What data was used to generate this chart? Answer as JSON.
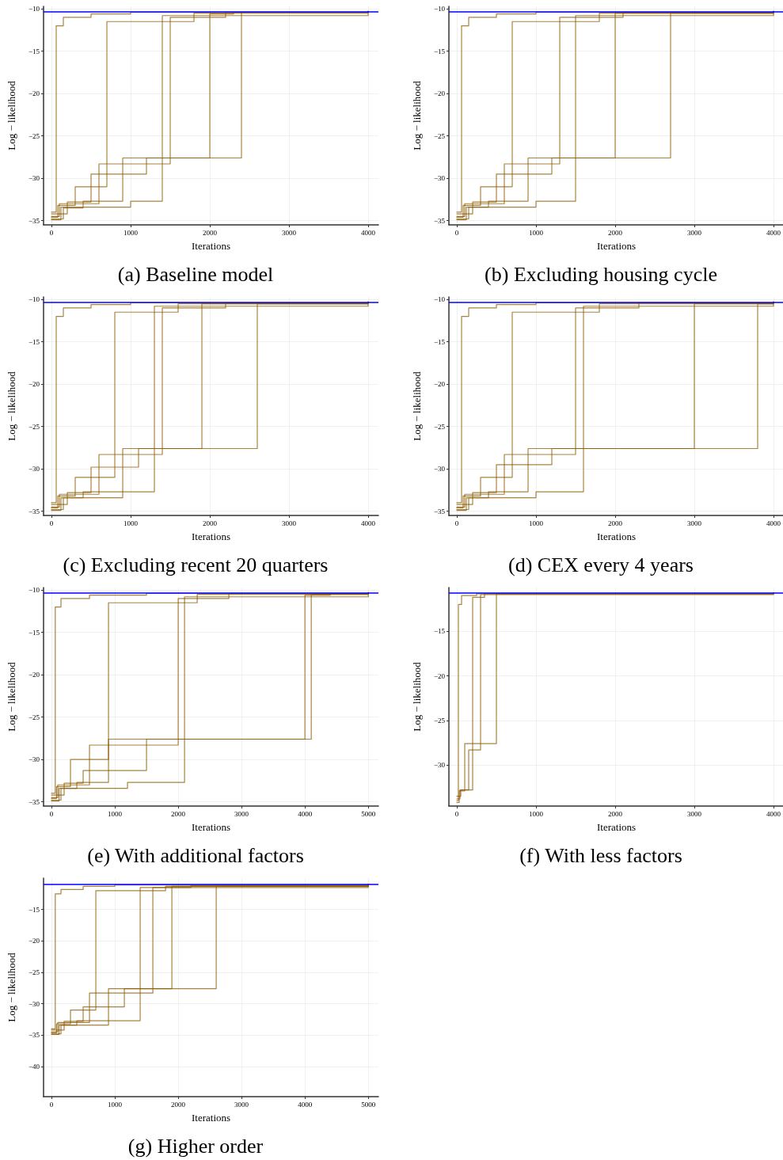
{
  "chart_data": [
    {
      "type": "step",
      "title": "(a) Baseline model",
      "xlabel": "Iterations",
      "ylabel": "Log − likelihood",
      "xlim": [
        -100,
        4130
      ],
      "ylim": [
        -35.5,
        -9.7
      ],
      "xticks": [
        0,
        1000,
        2000,
        3000,
        4000
      ],
      "yticks": [
        -35,
        -30,
        -25,
        -20,
        -15,
        -10
      ],
      "grid": true,
      "marker": "none",
      "ref_lines": [
        {
          "axis": "y",
          "value": -10.3,
          "color": "#0000ff"
        }
      ],
      "series": [
        {
          "color": "#8b5a00",
          "x": [
            0,
            150,
            400,
            900,
            2000,
            2300,
            4000
          ],
          "values": [
            -34.8,
            -33.5,
            -32.7,
            -27.6,
            -10.6,
            -10.4,
            -10.3
          ]
        },
        {
          "color": "#8b5a00",
          "x": [
            0,
            100,
            600,
            1500,
            2200,
            4000
          ],
          "values": [
            -34.5,
            -33,
            -28.3,
            -11,
            -10.4,
            -10.3
          ]
        },
        {
          "color": "#8b5a00",
          "x": [
            0,
            200,
            500,
            1200,
            2400,
            4000
          ],
          "values": [
            -34.2,
            -32.8,
            -29.5,
            -27.6,
            -10.4,
            -10.3
          ]
        },
        {
          "color": "#8b5a00",
          "x": [
            0,
            80,
            300,
            700,
            1800,
            4000
          ],
          "values": [
            -34.6,
            -33.2,
            -31,
            -11.5,
            -10.5,
            -10.3
          ]
        },
        {
          "color": "#8b5a00",
          "x": [
            0,
            120,
            1000,
            1400,
            4000
          ],
          "values": [
            -34.9,
            -33.4,
            -32.7,
            -10.8,
            -10.3
          ]
        },
        {
          "color": "#8b5a00",
          "x": [
            0,
            60,
            150,
            500,
            1000,
            4000
          ],
          "values": [
            -34,
            -12,
            -11,
            -10.6,
            -10.4,
            -10.3
          ]
        }
      ]
    },
    {
      "type": "step",
      "title": "(b) Excluding housing cycle",
      "xlabel": "Iterations",
      "ylabel": "Log − likelihood",
      "xlim": [
        -100,
        4130
      ],
      "ylim": [
        -35.5,
        -9.7
      ],
      "xticks": [
        0,
        1000,
        2000,
        3000,
        4000
      ],
      "yticks": [
        -35,
        -30,
        -25,
        -20,
        -15,
        -10
      ],
      "grid": true,
      "marker": "none",
      "ref_lines": [
        {
          "axis": "y",
          "value": -10.3,
          "color": "#0000ff"
        }
      ],
      "series": [
        {
          "color": "#8b5a00",
          "x": [
            0,
            150,
            400,
            900,
            2700,
            4000
          ],
          "values": [
            -34.8,
            -33.4,
            -32.7,
            -27.6,
            -10.5,
            -10.3
          ]
        },
        {
          "color": "#8b5a00",
          "x": [
            0,
            100,
            600,
            1300,
            2100,
            4000
          ],
          "values": [
            -34.5,
            -33,
            -28.3,
            -11,
            -10.4,
            -10.3
          ]
        },
        {
          "color": "#8b5a00",
          "x": [
            0,
            200,
            500,
            1200,
            2000,
            4000
          ],
          "values": [
            -34.2,
            -32.8,
            -29.5,
            -27.6,
            -10.5,
            -10.3
          ]
        },
        {
          "color": "#8b5a00",
          "x": [
            0,
            80,
            300,
            700,
            1800,
            4000
          ],
          "values": [
            -34.6,
            -33.2,
            -31,
            -11.5,
            -10.5,
            -10.3
          ]
        },
        {
          "color": "#8b5a00",
          "x": [
            0,
            120,
            1000,
            1500,
            4000
          ],
          "values": [
            -34.9,
            -33.4,
            -32.7,
            -10.8,
            -10.3
          ]
        },
        {
          "color": "#8b5a00",
          "x": [
            0,
            60,
            150,
            500,
            1000,
            4000
          ],
          "values": [
            -34,
            -12,
            -11,
            -10.6,
            -10.4,
            -10.3
          ]
        }
      ]
    },
    {
      "type": "step",
      "title": "(c) Excluding recent 20 quarters",
      "xlabel": "Iterations",
      "ylabel": "Log − likelihood",
      "xlim": [
        -100,
        4130
      ],
      "ylim": [
        -35.5,
        -9.7
      ],
      "xticks": [
        0,
        1000,
        2000,
        3000,
        4000
      ],
      "yticks": [
        -35,
        -30,
        -25,
        -20,
        -15,
        -10
      ],
      "grid": true,
      "marker": "none",
      "ref_lines": [
        {
          "axis": "y",
          "value": -10.3,
          "color": "#0000ff"
        }
      ],
      "series": [
        {
          "color": "#8b5a00",
          "x": [
            0,
            150,
            400,
            900,
            2600,
            4000
          ],
          "values": [
            -34.8,
            -33.4,
            -32.7,
            -27.6,
            -10.5,
            -10.3
          ]
        },
        {
          "color": "#8b5a00",
          "x": [
            0,
            100,
            600,
            1400,
            2200,
            4000
          ],
          "values": [
            -34.5,
            -33,
            -28.3,
            -11,
            -10.4,
            -10.3
          ]
        },
        {
          "color": "#8b5a00",
          "x": [
            0,
            200,
            500,
            1100,
            1900,
            4000
          ],
          "values": [
            -34.2,
            -32.8,
            -29.8,
            -27.6,
            -10.5,
            -10.3
          ]
        },
        {
          "color": "#8b5a00",
          "x": [
            0,
            80,
            300,
            800,
            1600,
            4000
          ],
          "values": [
            -34.6,
            -33.2,
            -31,
            -11.5,
            -10.5,
            -10.3
          ]
        },
        {
          "color": "#8b5a00",
          "x": [
            0,
            120,
            900,
            1300,
            4000
          ],
          "values": [
            -34.9,
            -33.4,
            -32.7,
            -10.8,
            -10.3
          ]
        },
        {
          "color": "#8b5a00",
          "x": [
            0,
            60,
            150,
            500,
            1000,
            4000
          ],
          "values": [
            -34,
            -12,
            -11,
            -10.6,
            -10.4,
            -10.3
          ]
        }
      ]
    },
    {
      "type": "step",
      "title": "(d) CEX every 4 years",
      "xlabel": "Iterations",
      "ylabel": "Log − likelihood",
      "xlim": [
        -100,
        4130
      ],
      "ylim": [
        -35.5,
        -9.7
      ],
      "xticks": [
        0,
        1000,
        2000,
        3000,
        4000
      ],
      "yticks": [
        -35,
        -30,
        -25,
        -20,
        -15,
        -10
      ],
      "grid": true,
      "marker": "none",
      "ref_lines": [
        {
          "axis": "y",
          "value": -10.3,
          "color": "#0000ff"
        }
      ],
      "series": [
        {
          "color": "#8b5a00",
          "x": [
            0,
            150,
            400,
            900,
            3800,
            4000
          ],
          "values": [
            -34.8,
            -33.4,
            -32.7,
            -27.6,
            -10.5,
            -10.3
          ]
        },
        {
          "color": "#8b5a00",
          "x": [
            0,
            100,
            600,
            1500,
            2300,
            4000
          ],
          "values": [
            -34.5,
            -33,
            -28.3,
            -11,
            -10.4,
            -10.3
          ]
        },
        {
          "color": "#8b5a00",
          "x": [
            0,
            200,
            500,
            1200,
            3000,
            4000
          ],
          "values": [
            -34.2,
            -32.8,
            -29.5,
            -27.6,
            -10.5,
            -10.3
          ]
        },
        {
          "color": "#8b5a00",
          "x": [
            0,
            80,
            300,
            700,
            1800,
            4000
          ],
          "values": [
            -34.6,
            -33.2,
            -31,
            -11.5,
            -10.5,
            -10.3
          ]
        },
        {
          "color": "#8b5a00",
          "x": [
            0,
            120,
            1000,
            1600,
            4000
          ],
          "values": [
            -34.9,
            -33.4,
            -32.7,
            -10.8,
            -10.3
          ]
        },
        {
          "color": "#8b5a00",
          "x": [
            0,
            60,
            150,
            500,
            1000,
            4000
          ],
          "values": [
            -34,
            -12,
            -11,
            -10.6,
            -10.4,
            -10.3
          ]
        }
      ]
    },
    {
      "type": "step",
      "title": "(e) With additional factors",
      "xlabel": "Iterations",
      "ylabel": "Log − likelihood",
      "xlim": [
        -125,
        5160
      ],
      "ylim": [
        -35.5,
        -9.7
      ],
      "xticks": [
        0,
        1000,
        2000,
        3000,
        4000,
        5000
      ],
      "yticks": [
        -35,
        -30,
        -25,
        -20,
        -15,
        -10
      ],
      "grid": true,
      "marker": "none",
      "ref_lines": [
        {
          "axis": "y",
          "value": -10.3,
          "color": "#0000ff"
        }
      ],
      "series": [
        {
          "color": "#8b5a00",
          "x": [
            0,
            150,
            400,
            900,
            4000,
            4400,
            5000
          ],
          "values": [
            -34.8,
            -33.4,
            -32.7,
            -27.6,
            -10.6,
            -10.4,
            -10.3
          ]
        },
        {
          "color": "#8b5a00",
          "x": [
            0,
            100,
            600,
            2000,
            2800,
            5000
          ],
          "values": [
            -34.5,
            -33,
            -28.3,
            -11,
            -10.4,
            -10.3
          ]
        },
        {
          "color": "#8b5a00",
          "x": [
            0,
            200,
            500,
            1500,
            4100,
            5000
          ],
          "values": [
            -34.2,
            -32.8,
            -31.3,
            -27.6,
            -10.5,
            -10.3
          ]
        },
        {
          "color": "#8b5a00",
          "x": [
            0,
            80,
            300,
            900,
            2300,
            5000
          ],
          "values": [
            -34.6,
            -33.2,
            -30,
            -11.5,
            -10.5,
            -10.3
          ]
        },
        {
          "color": "#8b5a00",
          "x": [
            0,
            120,
            1200,
            2100,
            5000
          ],
          "values": [
            -34.9,
            -33.4,
            -32.7,
            -10.8,
            -10.3
          ]
        },
        {
          "color": "#8b5a00",
          "x": [
            0,
            60,
            150,
            600,
            1500,
            5000
          ],
          "values": [
            -34,
            -12,
            -11,
            -10.6,
            -10.4,
            -10.3
          ]
        }
      ]
    },
    {
      "type": "step",
      "title": "(f) With less factors",
      "xlabel": "Iterations",
      "ylabel": "Log − likelihood",
      "xlim": [
        -100,
        4130
      ],
      "ylim": [
        -34.6,
        -10.1
      ],
      "xticks": [
        0,
        1000,
        2000,
        3000,
        4000
      ],
      "yticks": [
        -30,
        -25,
        -20,
        -15
      ],
      "grid": true,
      "marker": "none",
      "ref_lines": [
        {
          "axis": "y",
          "value": -10.7,
          "color": "#0000ff"
        }
      ],
      "series": [
        {
          "color": "#8b5a00",
          "x": [
            0,
            30,
            100,
            500,
            4000
          ],
          "values": [
            -34.2,
            -32.9,
            -27.6,
            -10.8,
            -10.7
          ]
        },
        {
          "color": "#8b5a00",
          "x": [
            0,
            40,
            200,
            350,
            4000
          ],
          "values": [
            -33.8,
            -32.8,
            -11.2,
            -10.8,
            -10.7
          ]
        },
        {
          "color": "#8b5a00",
          "x": [
            0,
            20,
            60,
            250,
            4000
          ],
          "values": [
            -34,
            -12,
            -11,
            -10.8,
            -10.7
          ]
        },
        {
          "color": "#8b5a00",
          "x": [
            0,
            50,
            150,
            300,
            4000
          ],
          "values": [
            -33.5,
            -32.8,
            -28.3,
            -10.9,
            -10.7
          ]
        }
      ]
    },
    {
      "type": "step",
      "title": "(g) Higher order",
      "xlabel": "Iterations",
      "ylabel": "Log − likelihood",
      "xlim": [
        -125,
        5160
      ],
      "ylim": [
        -44.8,
        -10
      ],
      "xticks": [
        0,
        1000,
        2000,
        3000,
        4000,
        5000
      ],
      "yticks": [
        -40,
        -35,
        -30,
        -25,
        -20,
        -15
      ],
      "grid": true,
      "marker": "none",
      "ref_lines": [
        {
          "axis": "y",
          "value": -11,
          "color": "#0000ff"
        }
      ],
      "series": [
        {
          "color": "#8b5a00",
          "x": [
            0,
            150,
            400,
            900,
            2600,
            5000
          ],
          "values": [
            -34.8,
            -33.4,
            -32.7,
            -27.6,
            -11.3,
            -11
          ]
        },
        {
          "color": "#8b5a00",
          "x": [
            0,
            100,
            600,
            1600,
            2200,
            5000
          ],
          "values": [
            -34.5,
            -33,
            -28.3,
            -11.5,
            -11.2,
            -11
          ]
        },
        {
          "color": "#8b5a00",
          "x": [
            0,
            200,
            500,
            1150,
            1900,
            5000
          ],
          "values": [
            -34.2,
            -32.8,
            -30.5,
            -27.6,
            -11.3,
            -11
          ]
        },
        {
          "color": "#8b5a00",
          "x": [
            0,
            80,
            300,
            700,
            1800,
            5000
          ],
          "values": [
            -34.6,
            -33.2,
            -31,
            -12,
            -11.3,
            -11
          ]
        },
        {
          "color": "#8b5a00",
          "x": [
            0,
            120,
            900,
            1400,
            5000
          ],
          "values": [
            -34.9,
            -33.4,
            -32.7,
            -11.5,
            -11
          ]
        },
        {
          "color": "#8b5a00",
          "x": [
            0,
            60,
            150,
            500,
            1000,
            5000
          ],
          "values": [
            -34,
            -12.5,
            -11.8,
            -11.3,
            -11.1,
            -11
          ]
        }
      ]
    }
  ]
}
